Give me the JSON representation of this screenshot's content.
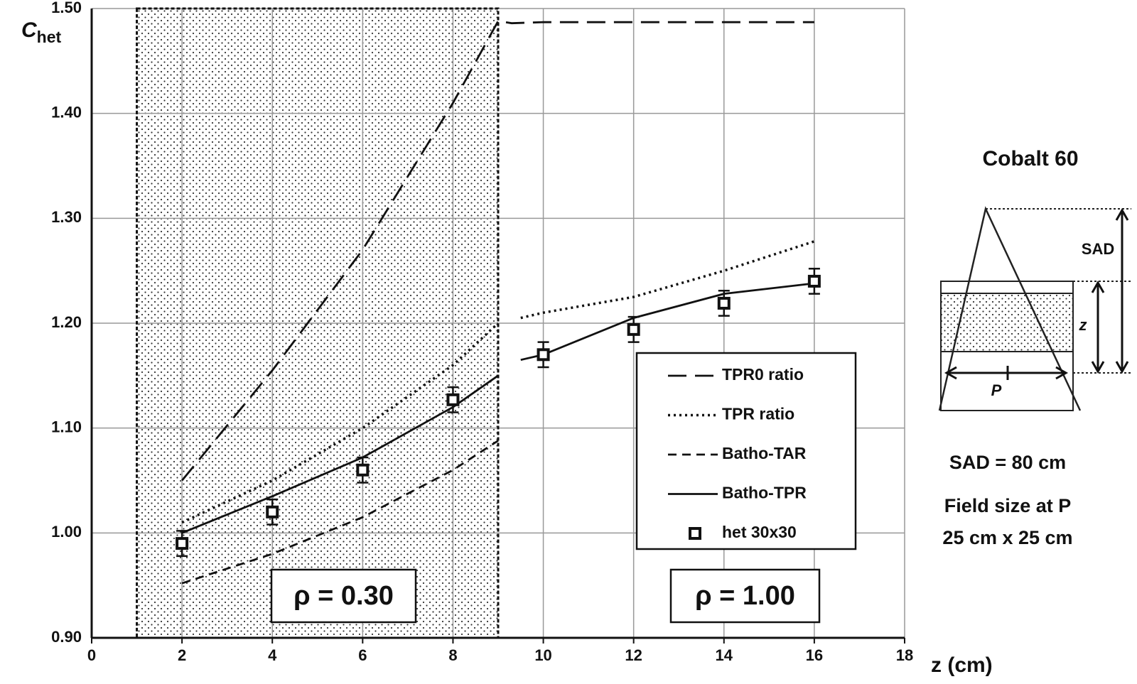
{
  "chart_data": {
    "type": "line",
    "y_label": "C",
    "y_label_sub": "het",
    "x_label": "z (cm)",
    "xlim": [
      0,
      18
    ],
    "xticks": [
      0,
      2,
      4,
      6,
      8,
      10,
      12,
      14,
      16,
      18
    ],
    "ylim": [
      0.9,
      1.5
    ],
    "yticks": [
      {
        "value": 0.9,
        "label": "0.90"
      },
      {
        "value": 1.0,
        "label": "1.00"
      },
      {
        "value": 1.1,
        "label": "1.10"
      },
      {
        "value": 1.2,
        "label": "1.20"
      },
      {
        "value": 1.3,
        "label": "1.30"
      },
      {
        "value": 1.4,
        "label": "1.40"
      },
      {
        "value": 1.5,
        "label": "1.50"
      }
    ],
    "grid": true,
    "region": {
      "from": 1,
      "to": 9
    },
    "region_labels": [
      "ρ = 0.30",
      "ρ = 1.00"
    ],
    "series": [
      {
        "name": "TPR0 ratio",
        "style": "long-dash",
        "color": "#111",
        "x": [
          2,
          4,
          6,
          8,
          9,
          9.3,
          10,
          12,
          14,
          16
        ],
        "values": [
          1.05,
          1.155,
          1.27,
          1.41,
          1.488,
          1.486,
          1.487,
          1.487,
          1.487,
          1.487
        ]
      },
      {
        "name": "TPR ratio",
        "style": "dotted",
        "color": "#111",
        "x": [
          2,
          4,
          6,
          8,
          9,
          9.2,
          9.5,
          10,
          12,
          14,
          16
        ],
        "values": [
          1.01,
          1.05,
          1.1,
          1.16,
          1.2,
          null,
          1.205,
          1.21,
          1.225,
          1.25,
          1.278
        ]
      },
      {
        "name": "Batho-TAR",
        "style": "short-dash",
        "color": "#111",
        "x": [
          2,
          4,
          6,
          8,
          9
        ],
        "values": [
          0.952,
          0.98,
          1.015,
          1.06,
          1.088
        ]
      },
      {
        "name": "Batho-TPR",
        "style": "solid",
        "color": "#111",
        "x": [
          2,
          4,
          6,
          8,
          9,
          9.2,
          9.5,
          10,
          12,
          14,
          16
        ],
        "values": [
          1.0,
          1.035,
          1.072,
          1.12,
          1.15,
          null,
          1.165,
          1.17,
          1.205,
          1.228,
          1.238
        ]
      },
      {
        "name": "het 30x30",
        "style": "marker",
        "color": "#111",
        "x": [
          2,
          4,
          6,
          8,
          10,
          12,
          14,
          16
        ],
        "values": [
          0.99,
          1.02,
          1.06,
          1.127,
          1.17,
          1.194,
          1.219,
          1.24
        ],
        "errors": [
          0.012,
          0.012,
          0.012,
          0.012,
          0.012,
          0.012,
          0.012,
          0.012
        ]
      }
    ],
    "panel": {
      "title": "Cobalt 60",
      "sad_label": "SAD",
      "z_label": "z",
      "p_label": "P",
      "sad": "SAD = 80 cm",
      "field_line1": "Field size at P",
      "field_line2": "25 cm x 25 cm"
    }
  }
}
